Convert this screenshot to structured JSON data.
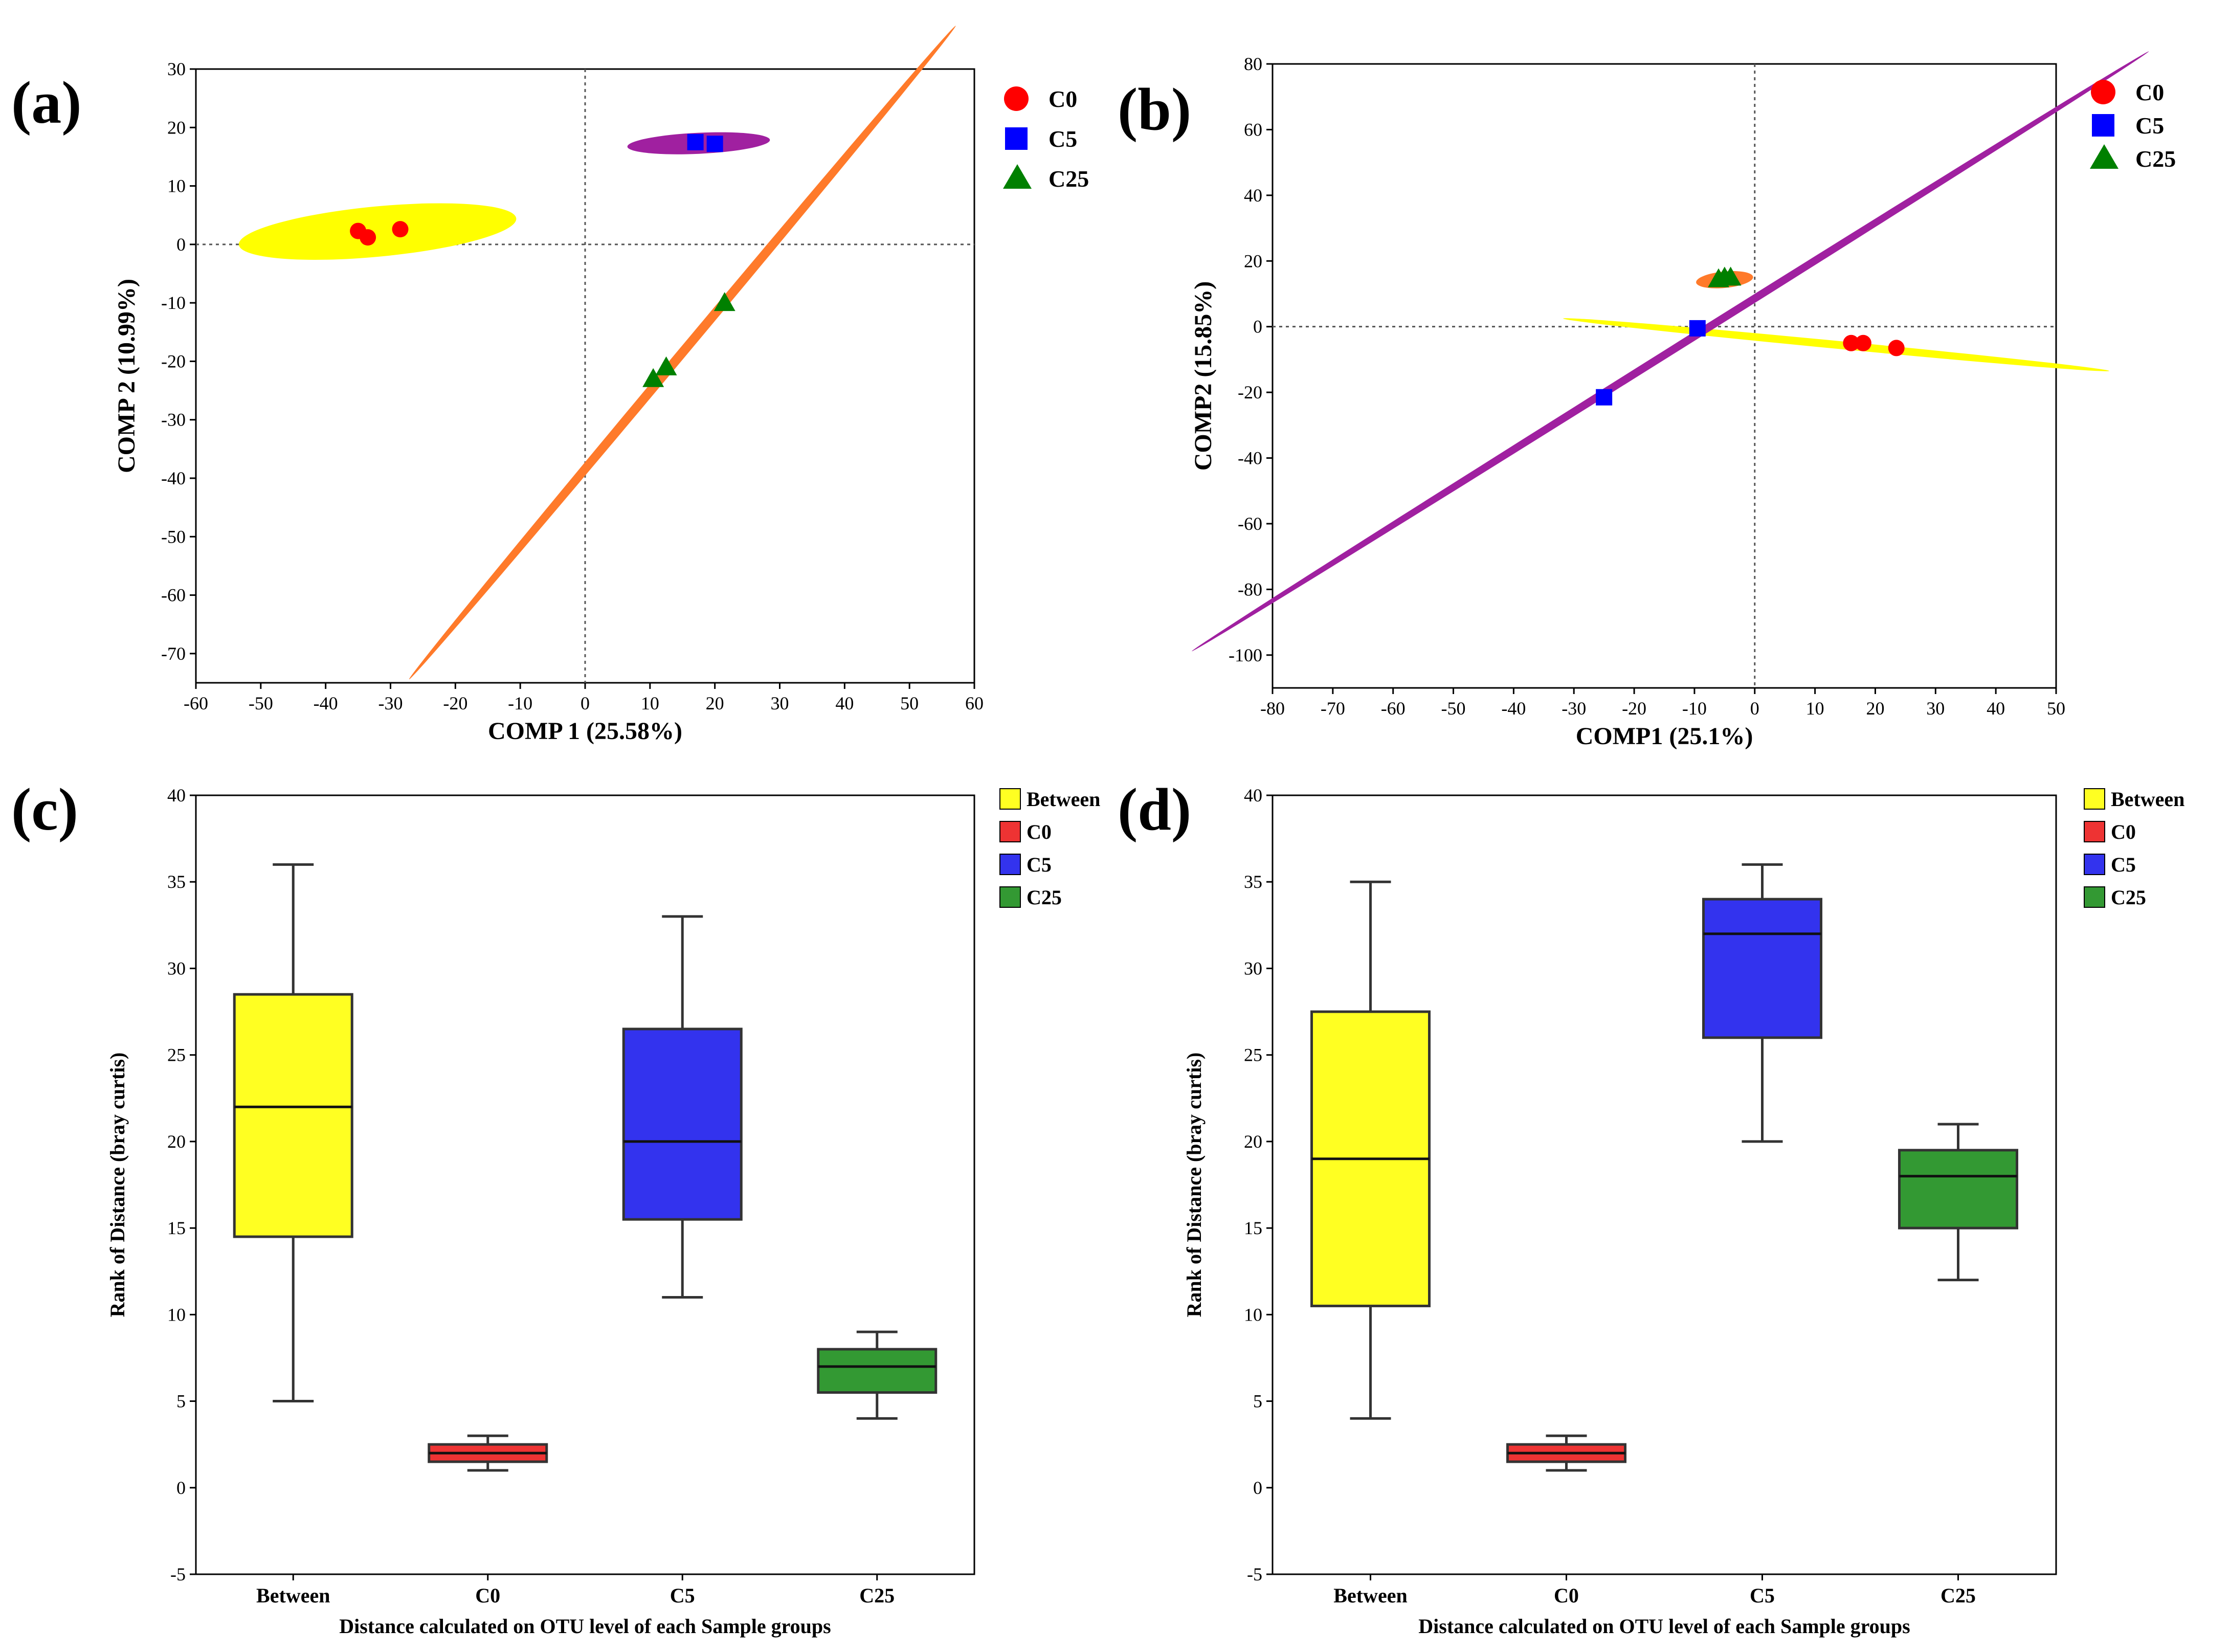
{
  "colors": {
    "C0": "#ff0000",
    "C5": "#0000ff",
    "C25": "#008000",
    "ellipse_C0": "#ffff00",
    "ellipse_C5": "#a020a0",
    "ellipse_C25": "#ff7a2a",
    "box_Between": "#ffff22",
    "box_C0": "#ee3333",
    "box_C5": "#3333ee",
    "box_C25": "#339933"
  },
  "chart_data": [
    {
      "panel": "(a)",
      "type": "scatter",
      "xlabel": "COMP 1 (25.58%)",
      "ylabel": "COMP 2 (10.99%)",
      "xlim": [
        -60,
        60
      ],
      "ylim": [
        -75,
        30
      ],
      "xticks": [
        -60,
        -50,
        -40,
        -30,
        -20,
        -10,
        0,
        10,
        20,
        30,
        40,
        50,
        60
      ],
      "yticks": [
        -70,
        -60,
        -50,
        -40,
        -30,
        -20,
        -10,
        0,
        10,
        20,
        30
      ],
      "reference_lines": "dotted at x=0 and y=0",
      "legend_position": "top-right",
      "legend": [
        "C0",
        "C5",
        "C25"
      ],
      "series": [
        {
          "name": "C0",
          "marker": "circle",
          "points": [
            [
              -35,
              2.3
            ],
            [
              -33.5,
              1.2
            ],
            [
              -28.5,
              2.6
            ]
          ]
        },
        {
          "name": "C5",
          "marker": "square",
          "points": [
            [
              17,
              17.5
            ],
            [
              20,
              17.2
            ]
          ]
        },
        {
          "name": "C25",
          "marker": "triangle",
          "points": [
            [
              10.5,
              -23
            ],
            [
              12.5,
              -21
            ],
            [
              21.5,
              -10
            ]
          ]
        }
      ],
      "ellipses": [
        {
          "group": "C0",
          "cx": -32,
          "cy": 2.2,
          "rx": 21.5,
          "ry": 4.3,
          "angle_deg": 6
        },
        {
          "group": "C5",
          "cx": 17.5,
          "cy": 17.3,
          "rx": 11,
          "ry": 1.8,
          "angle_deg": 3
        },
        {
          "group": "C25",
          "cx": 15,
          "cy": -18.5,
          "rx": 70,
          "ry": 0.8,
          "angle_deg": 53
        }
      ]
    },
    {
      "panel": "(b)",
      "type": "scatter",
      "xlabel": "COMP1 (25.1%)",
      "ylabel": "COMP2 (15.85%)",
      "xlim": [
        -80,
        50
      ],
      "ylim": [
        -110,
        80
      ],
      "xticks": [
        -80,
        -70,
        -60,
        -50,
        -40,
        -30,
        -20,
        -10,
        0,
        10,
        20,
        30,
        40,
        50
      ],
      "yticks": [
        -100,
        -80,
        -60,
        -40,
        -20,
        0,
        20,
        40,
        60,
        80
      ],
      "reference_lines": "dotted at x=0 and y=0",
      "legend_position": "top-right",
      "legend": [
        "C0",
        "C5",
        "C25"
      ],
      "series": [
        {
          "name": "C0",
          "marker": "circle",
          "points": [
            [
              16,
              -5
            ],
            [
              18,
              -5
            ],
            [
              23.5,
              -6.5
            ]
          ]
        },
        {
          "name": "C5",
          "marker": "square",
          "points": [
            [
              -9.5,
              -0.5
            ],
            [
              -25,
              -21.5
            ]
          ]
        },
        {
          "name": "C25",
          "marker": "triangle",
          "points": [
            [
              -6,
              14.5
            ],
            [
              -5,
              15
            ],
            [
              -4,
              15
            ]
          ]
        }
      ],
      "ellipses": [
        {
          "group": "C0",
          "cx": 13.5,
          "cy": -5.5,
          "rx": 46,
          "ry": 1.2,
          "angle_deg": -10
        },
        {
          "group": "C5",
          "cx": -14,
          "cy": -7.5,
          "rx": 121,
          "ry": 1.2,
          "angle_deg": 49
        },
        {
          "group": "C25",
          "cx": -5,
          "cy": 14.3,
          "rx": 4.8,
          "ry": 2.5,
          "angle_deg": 10
        }
      ]
    },
    {
      "panel": "(c)",
      "type": "box",
      "xlabel": "Distance calculated on OTU level of each Sample groups",
      "ylabel": "Rank of Distance (bray curtis)",
      "ylim": [
        -5,
        40
      ],
      "yticks": [
        -5,
        0,
        5,
        10,
        15,
        20,
        25,
        30,
        35,
        40
      ],
      "categories": [
        "Between",
        "C0",
        "C5",
        "C25"
      ],
      "legend_position": "top-right",
      "legend": [
        "Between",
        "C0",
        "C5",
        "C25"
      ],
      "boxes": [
        {
          "name": "Between",
          "min": 5,
          "q1": 14.5,
          "median": 22,
          "q3": 28.5,
          "max": 36
        },
        {
          "name": "C0",
          "min": 1,
          "q1": 1.5,
          "median": 2,
          "q3": 2.5,
          "max": 3
        },
        {
          "name": "C5",
          "min": 11,
          "q1": 15.5,
          "median": 20,
          "q3": 26.5,
          "max": 33
        },
        {
          "name": "C25",
          "min": 4,
          "q1": 5.5,
          "median": 7,
          "q3": 8,
          "max": 9
        }
      ]
    },
    {
      "panel": "(d)",
      "type": "box",
      "xlabel": "Distance calculated on OTU level of each Sample groups",
      "ylabel": "Rank of Distance (bray curtis)",
      "ylim": [
        -5,
        40
      ],
      "yticks": [
        -5,
        0,
        5,
        10,
        15,
        20,
        25,
        30,
        35,
        40
      ],
      "categories": [
        "Between",
        "C0",
        "C5",
        "C25"
      ],
      "legend_position": "top-right",
      "legend": [
        "Between",
        "C0",
        "C5",
        "C25"
      ],
      "boxes": [
        {
          "name": "Between",
          "min": 4,
          "q1": 10.5,
          "median": 19,
          "q3": 27.5,
          "max": 35
        },
        {
          "name": "C0",
          "min": 1,
          "q1": 1.5,
          "median": 2,
          "q3": 2.5,
          "max": 3
        },
        {
          "name": "C5",
          "min": 20,
          "q1": 26,
          "median": 32,
          "q3": 34,
          "max": 36
        },
        {
          "name": "C25",
          "min": 12,
          "q1": 15,
          "median": 18,
          "q3": 19.5,
          "max": 21
        }
      ]
    }
  ]
}
